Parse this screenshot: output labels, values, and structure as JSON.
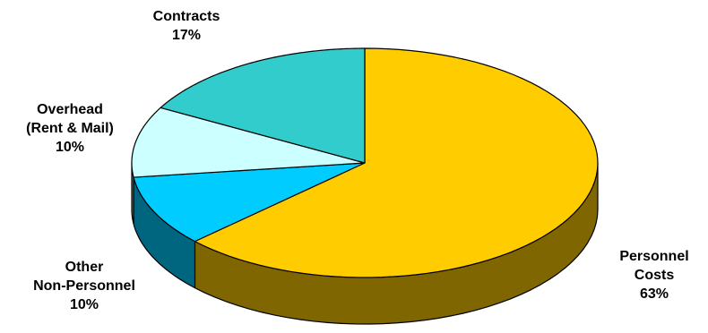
{
  "chart_data": {
    "type": "pie",
    "style": "3d-exploded-none",
    "slices": [
      {
        "name": "Personnel Costs",
        "label_lines": [
          "Personnel",
          "Costs",
          "63%"
        ],
        "value": 63,
        "color": "#FFCC00",
        "side_color": "#806600"
      },
      {
        "name": "Other Non-Personnel",
        "label_lines": [
          "Other",
          "Non-Personnel",
          "10%"
        ],
        "value": 10,
        "color": "#00CCFF",
        "side_color": "#006680"
      },
      {
        "name": "Overhead (Rent & Mail)",
        "label_lines": [
          "Overhead",
          "(Rent & Mail)",
          "10%"
        ],
        "value": 10,
        "color": "#CCFFFF",
        "side_color": "#668080"
      },
      {
        "name": "Contracts",
        "label_lines": [
          "Contracts",
          "17%"
        ],
        "value": 17,
        "color": "#33CCCC",
        "side_color": "#1A6666"
      }
    ],
    "legend": "none",
    "title": ""
  }
}
